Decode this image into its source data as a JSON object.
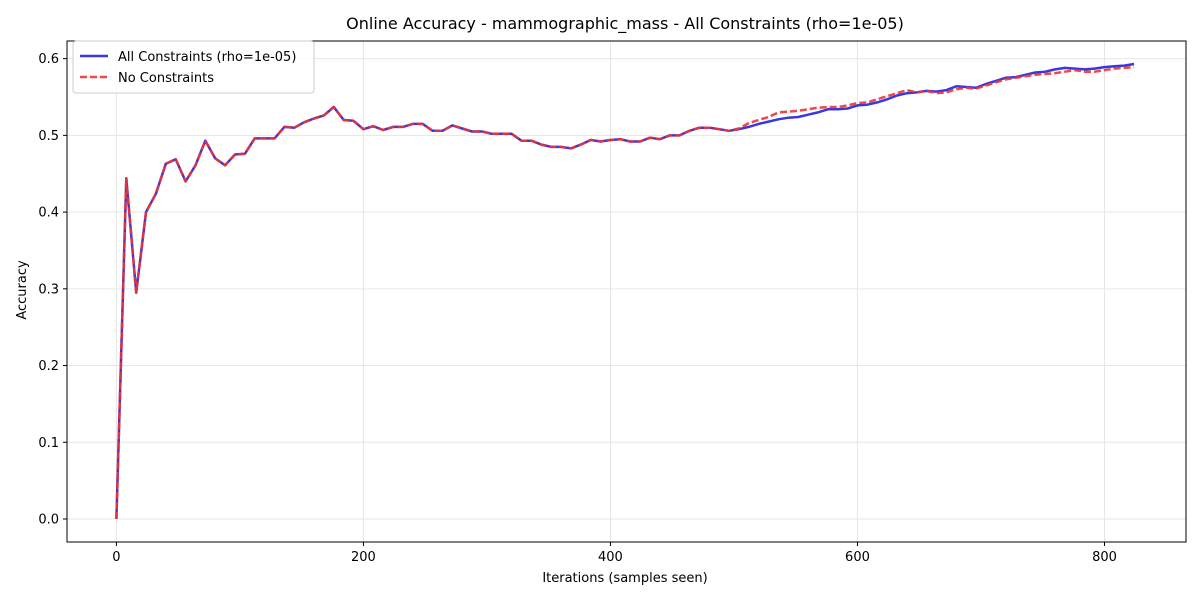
{
  "chart_data": {
    "type": "line",
    "title": "Online Accuracy - mammographic_mass - All Constraints (rho=1e-05)",
    "xlabel": "Iterations (samples seen)",
    "ylabel": "Accuracy",
    "xlim": [
      -40,
      866
    ],
    "ylim": [
      -0.03,
      0.623
    ],
    "xticks": [
      0,
      200,
      400,
      600,
      800
    ],
    "yticks": [
      0.0,
      0.1,
      0.2,
      0.3,
      0.4,
      0.5,
      0.6
    ],
    "xtick_labels": [
      "0",
      "200",
      "400",
      "600",
      "800"
    ],
    "ytick_labels": [
      "0.0",
      "0.1",
      "0.2",
      "0.3",
      "0.4",
      "0.5",
      "0.6"
    ],
    "grid": true,
    "legend_position": "upper-left",
    "series": [
      {
        "name": "All Constraints (rho=1e-05)",
        "color": "#2222dd",
        "style": "solid",
        "x": [
          0,
          8,
          16,
          24,
          32,
          40,
          48,
          56,
          64,
          72,
          80,
          88,
          96,
          104,
          112,
          120,
          128,
          136,
          144,
          152,
          160,
          168,
          176,
          184,
          192,
          200,
          208,
          216,
          224,
          232,
          240,
          248,
          256,
          264,
          272,
          280,
          288,
          296,
          304,
          312,
          320,
          328,
          336,
          344,
          352,
          360,
          368,
          376,
          384,
          392,
          400,
          408,
          416,
          424,
          432,
          440,
          448,
          456,
          464,
          472,
          480,
          488,
          496,
          504,
          512,
          520,
          528,
          536,
          544,
          552,
          560,
          568,
          576,
          584,
          592,
          600,
          608,
          616,
          624,
          632,
          640,
          648,
          656,
          664,
          672,
          680,
          688,
          696,
          704,
          712,
          720,
          728,
          736,
          744,
          752,
          760,
          768,
          776,
          784,
          792,
          800,
          808,
          816,
          824
        ],
        "y": [
          0.0,
          0.444,
          0.295,
          0.4,
          0.424,
          0.463,
          0.469,
          0.44,
          0.461,
          0.493,
          0.47,
          0.461,
          0.475,
          0.476,
          0.496,
          0.496,
          0.496,
          0.511,
          0.51,
          0.517,
          0.522,
          0.526,
          0.537,
          0.52,
          0.519,
          0.508,
          0.512,
          0.507,
          0.511,
          0.511,
          0.515,
          0.515,
          0.506,
          0.506,
          0.513,
          0.509,
          0.505,
          0.505,
          0.502,
          0.502,
          0.502,
          0.493,
          0.493,
          0.488,
          0.485,
          0.485,
          0.483,
          0.488,
          0.494,
          0.492,
          0.494,
          0.495,
          0.492,
          0.492,
          0.497,
          0.495,
          0.5,
          0.5,
          0.506,
          0.51,
          0.51,
          0.508,
          0.506,
          0.508,
          0.511,
          0.515,
          0.518,
          0.521,
          0.523,
          0.524,
          0.527,
          0.53,
          0.534,
          0.534,
          0.535,
          0.539,
          0.54,
          0.543,
          0.547,
          0.552,
          0.555,
          0.556,
          0.558,
          0.557,
          0.559,
          0.564,
          0.563,
          0.562,
          0.567,
          0.571,
          0.575,
          0.576,
          0.579,
          0.582,
          0.583,
          0.586,
          0.588,
          0.587,
          0.586,
          0.587,
          0.589,
          0.59,
          0.591,
          0.593
        ]
      },
      {
        "name": "No Constraints",
        "color": "#ee3333",
        "style": "dashed",
        "x": [
          0,
          8,
          16,
          24,
          32,
          40,
          48,
          56,
          64,
          72,
          80,
          88,
          96,
          104,
          112,
          120,
          128,
          136,
          144,
          152,
          160,
          168,
          176,
          184,
          192,
          200,
          208,
          216,
          224,
          232,
          240,
          248,
          256,
          264,
          272,
          280,
          288,
          296,
          304,
          312,
          320,
          328,
          336,
          344,
          352,
          360,
          368,
          376,
          384,
          392,
          400,
          408,
          416,
          424,
          432,
          440,
          448,
          456,
          464,
          472,
          480,
          488,
          496,
          504,
          512,
          520,
          528,
          536,
          544,
          552,
          560,
          568,
          576,
          584,
          592,
          600,
          608,
          616,
          624,
          632,
          640,
          648,
          656,
          664,
          672,
          680,
          688,
          696,
          704,
          712,
          720,
          728,
          736,
          744,
          752,
          760,
          768,
          776,
          784,
          792,
          800,
          808,
          816,
          824
        ],
        "y": [
          0.0,
          0.444,
          0.295,
          0.4,
          0.424,
          0.463,
          0.469,
          0.44,
          0.461,
          0.493,
          0.47,
          0.461,
          0.475,
          0.476,
          0.496,
          0.496,
          0.496,
          0.511,
          0.51,
          0.517,
          0.522,
          0.526,
          0.537,
          0.52,
          0.519,
          0.508,
          0.512,
          0.507,
          0.511,
          0.511,
          0.515,
          0.515,
          0.506,
          0.506,
          0.513,
          0.509,
          0.505,
          0.505,
          0.502,
          0.502,
          0.502,
          0.493,
          0.493,
          0.488,
          0.485,
          0.485,
          0.483,
          0.488,
          0.494,
          0.492,
          0.494,
          0.495,
          0.492,
          0.492,
          0.497,
          0.495,
          0.5,
          0.5,
          0.506,
          0.51,
          0.51,
          0.508,
          0.506,
          0.509,
          0.516,
          0.52,
          0.524,
          0.53,
          0.531,
          0.532,
          0.534,
          0.536,
          0.537,
          0.537,
          0.539,
          0.542,
          0.543,
          0.547,
          0.551,
          0.555,
          0.559,
          0.556,
          0.558,
          0.555,
          0.556,
          0.56,
          0.562,
          0.561,
          0.565,
          0.569,
          0.573,
          0.575,
          0.577,
          0.579,
          0.58,
          0.581,
          0.583,
          0.585,
          0.583,
          0.583,
          0.585,
          0.587,
          0.588,
          0.589
        ]
      }
    ]
  }
}
